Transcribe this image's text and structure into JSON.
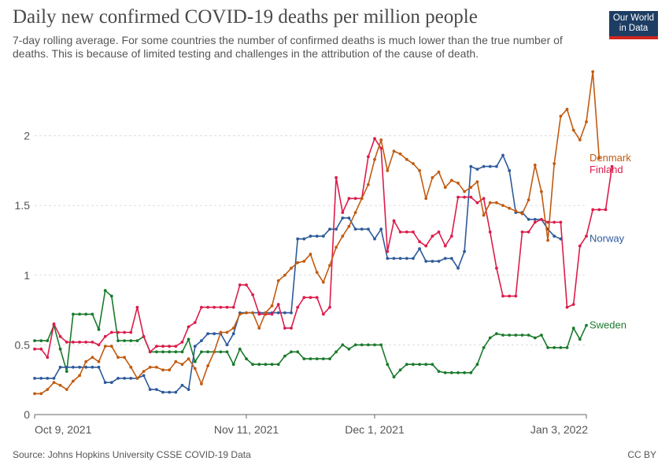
{
  "header": {
    "title": "Daily new confirmed COVID-19 deaths per million people",
    "subtitle": "7-day rolling average. For some countries the number of confirmed deaths is much lower than the true number of deaths. This is because of limited testing and challenges in the attribution of the cause of death.",
    "logo_line1": "Our World",
    "logo_line2": "in Data"
  },
  "footer": {
    "source": "Source: Johns Hopkins University CSSE COVID-19 Data",
    "license": "CC BY"
  },
  "colors": {
    "Denmark": "#c15b11",
    "Finland": "#dc1c4b",
    "Norway": "#2e5a9a",
    "Sweden": "#1a7a2c",
    "grid": "#dddddd",
    "axis": "#666666"
  },
  "chart_data": {
    "type": "line",
    "title": "Daily new confirmed COVID-19 deaths per million people",
    "xlabel": "",
    "ylabel": "",
    "x_start": "2021-10-09",
    "x_end": "2022-01-03",
    "x_ticks": [
      {
        "date": "2021-10-09",
        "label": "Oct 9, 2021"
      },
      {
        "date": "2021-11-11",
        "label": "Nov 11, 2021"
      },
      {
        "date": "2021-12-01",
        "label": "Dec 1, 2021"
      },
      {
        "date": "2022-01-03",
        "label": "Jan 3, 2022"
      }
    ],
    "ylim": [
      0,
      2.5
    ],
    "y_ticks": [
      0,
      0.5,
      1,
      1.5,
      2
    ],
    "grid": true,
    "legend": "line-end labels",
    "series": [
      {
        "name": "Sweden",
        "values": [
          0.53,
          0.53,
          0.53,
          0.64,
          0.47,
          0.31,
          0.72,
          0.72,
          0.72,
          0.72,
          0.61,
          0.89,
          0.85,
          0.53,
          0.53,
          0.53,
          0.53,
          0.56,
          0.45,
          0.45,
          0.45,
          0.45,
          0.45,
          0.45,
          0.54,
          0.38,
          0.45,
          0.45,
          0.45,
          0.45,
          0.45,
          0.36,
          0.47,
          0.4,
          0.36,
          0.36,
          0.36,
          0.36,
          0.36,
          0.42,
          0.45,
          0.45,
          0.4,
          0.4,
          0.4,
          0.4,
          0.4,
          0.45,
          0.5,
          0.47,
          0.5,
          0.5,
          0.5,
          0.5,
          0.5,
          0.36,
          0.27,
          0.32,
          0.36,
          0.36,
          0.36,
          0.36,
          0.36,
          0.31,
          0.3,
          0.3,
          0.3,
          0.3,
          0.3,
          0.36,
          0.48,
          0.55,
          0.58,
          0.57,
          0.57,
          0.57,
          0.57,
          0.57,
          0.55,
          0.57,
          0.48,
          0.48,
          0.48,
          0.48,
          0.62,
          0.54,
          0.64
        ]
      },
      {
        "name": "Norway",
        "values": [
          0.26,
          0.26,
          0.26,
          0.26,
          0.34,
          0.34,
          0.34,
          0.34,
          0.34,
          0.34,
          0.34,
          0.23,
          0.23,
          0.26,
          0.26,
          0.26,
          0.26,
          0.28,
          0.18,
          0.18,
          0.16,
          0.16,
          0.16,
          0.21,
          0.18,
          0.49,
          0.53,
          0.58,
          0.58,
          0.58,
          0.5,
          0.58,
          0.73,
          0.73,
          0.73,
          0.73,
          0.73,
          0.73,
          0.73,
          0.73,
          0.73,
          1.26,
          1.26,
          1.28,
          1.28,
          1.28,
          1.33,
          1.33,
          1.41,
          1.41,
          1.33,
          1.33,
          1.33,
          1.26,
          1.33,
          1.12,
          1.12,
          1.12,
          1.12,
          1.12,
          1.19,
          1.1,
          1.1,
          1.1,
          1.12,
          1.12,
          1.05,
          1.17,
          1.78,
          1.76,
          1.78,
          1.78,
          1.78,
          1.86,
          1.75,
          1.45,
          1.45,
          1.4,
          1.4,
          1.4,
          1.33,
          1.28,
          1.26
        ]
      },
      {
        "name": "Finland",
        "values": [
          0.47,
          0.47,
          0.41,
          0.65,
          0.56,
          0.52,
          0.52,
          0.52,
          0.52,
          0.52,
          0.5,
          0.56,
          0.59,
          0.59,
          0.59,
          0.59,
          0.77,
          0.56,
          0.45,
          0.49,
          0.49,
          0.49,
          0.49,
          0.52,
          0.63,
          0.66,
          0.77,
          0.77,
          0.77,
          0.77,
          0.77,
          0.77,
          0.93,
          0.93,
          0.86,
          0.72,
          0.72,
          0.72,
          0.79,
          0.62,
          0.62,
          0.77,
          0.84,
          0.84,
          0.84,
          0.72,
          0.77,
          1.7,
          1.45,
          1.55,
          1.55,
          1.55,
          1.85,
          1.98,
          1.91,
          1.17,
          1.39,
          1.31,
          1.31,
          1.31,
          1.24,
          1.21,
          1.28,
          1.31,
          1.21,
          1.28,
          1.56,
          1.56,
          1.56,
          1.52,
          1.55,
          1.31,
          1.05,
          0.85,
          0.85,
          0.85,
          1.31,
          1.31,
          1.38,
          1.4,
          1.38,
          1.38,
          1.38,
          0.77,
          0.79,
          1.21,
          1.28,
          1.47,
          1.47,
          1.47,
          1.78
        ]
      },
      {
        "name": "Denmark",
        "values": [
          0.15,
          0.15,
          0.18,
          0.23,
          0.21,
          0.18,
          0.24,
          0.28,
          0.38,
          0.41,
          0.38,
          0.49,
          0.49,
          0.41,
          0.41,
          0.34,
          0.26,
          0.31,
          0.34,
          0.34,
          0.32,
          0.32,
          0.38,
          0.36,
          0.4,
          0.33,
          0.22,
          0.35,
          0.45,
          0.59,
          0.59,
          0.62,
          0.72,
          0.73,
          0.73,
          0.62,
          0.73,
          0.78,
          0.96,
          1.0,
          1.05,
          1.09,
          1.1,
          1.15,
          1.02,
          0.95,
          1.07,
          1.2,
          1.28,
          1.35,
          1.45,
          1.55,
          1.65,
          1.83,
          1.97,
          1.75,
          1.89,
          1.87,
          1.83,
          1.8,
          1.75,
          1.55,
          1.7,
          1.74,
          1.63,
          1.68,
          1.66,
          1.6,
          1.63,
          1.67,
          1.43,
          1.52,
          1.52,
          1.5,
          1.48,
          1.46,
          1.44,
          1.54,
          1.79,
          1.6,
          1.25,
          1.8,
          2.14,
          2.19,
          2.04,
          1.97,
          2.1,
          2.46,
          1.84
        ]
      }
    ]
  }
}
